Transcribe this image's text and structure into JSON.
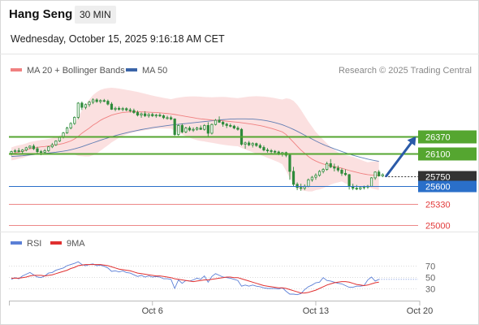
{
  "header": {
    "instrument": "Hang Seng",
    "timeframe": "30 MIN",
    "datetime": "Wednesday, October 15, 2025 9:16:18 AM CET"
  },
  "colors": {
    "ma20": "#f08080",
    "bollinger_fill": "#fadada",
    "ma50": "#3a64a8",
    "candle_up": "#2e8b3a",
    "candle_down": "#2e8b3a",
    "resistance": "#55a630",
    "support": "#2a6fc9",
    "red_support": "#e23a3a",
    "last_price": "#333333",
    "rsi": "#5b7fd6",
    "rsi_ma": "#e03030",
    "arrow": "#2a5aa8"
  },
  "chart_data": [
    {
      "type": "candlestick",
      "legend": [
        {
          "name": "MA 20 + Bollinger Bands",
          "color": "#f08080"
        },
        {
          "name": "MA 50",
          "color": "#3a64a8"
        }
      ],
      "copyright": "Research © 2025 Trading Central",
      "x_ticks": [
        {
          "label": "Oct 6",
          "bar": 38
        },
        {
          "label": "Oct 13",
          "bar": 82
        },
        {
          "label": "Oct 20",
          "bar": 110
        }
      ],
      "ylim": [
        24900,
        27600
      ],
      "candles": [
        [
          26110,
          26150,
          26075,
          26136
        ],
        [
          26136,
          26174,
          26118,
          26150
        ],
        [
          26150,
          26190,
          26120,
          26138
        ],
        [
          26138,
          26174,
          26110,
          26160
        ],
        [
          26160,
          26210,
          26140,
          26195
        ],
        [
          26195,
          26232,
          26178,
          26220
        ],
        [
          26220,
          26250,
          26160,
          26180
        ],
        [
          26180,
          26210,
          26110,
          26135
        ],
        [
          26135,
          26160,
          26080,
          26125
        ],
        [
          26125,
          26175,
          26100,
          26150
        ],
        [
          26150,
          26220,
          26132,
          26210
        ],
        [
          26210,
          26270,
          26190,
          26240
        ],
        [
          26240,
          26310,
          26224,
          26300
        ],
        [
          26300,
          26370,
          26285,
          26355
        ],
        [
          26355,
          26440,
          26340,
          26425
        ],
        [
          26425,
          26520,
          26410,
          26500
        ],
        [
          26500,
          26590,
          26480,
          26570
        ],
        [
          26570,
          26680,
          26550,
          26665
        ],
        [
          26665,
          26900,
          26640,
          26885
        ],
        [
          26885,
          26910,
          26780,
          26820
        ],
        [
          26820,
          26880,
          26790,
          26862
        ],
        [
          26862,
          26920,
          26830,
          26900
        ],
        [
          26900,
          26960,
          26870,
          26935
        ],
        [
          26935,
          26960,
          26890,
          26910
        ],
        [
          26910,
          26945,
          26880,
          26925
        ],
        [
          26925,
          26950,
          26900,
          26915
        ],
        [
          26915,
          26940,
          26850,
          26870
        ],
        [
          26870,
          26900,
          26780,
          26790
        ],
        [
          26790,
          26830,
          26760,
          26805
        ],
        [
          26805,
          26835,
          26770,
          26790
        ],
        [
          26790,
          26825,
          26760,
          26800
        ],
        [
          26800,
          26820,
          26760,
          26780
        ],
        [
          26780,
          26810,
          26740,
          26770
        ],
        [
          26770,
          26800,
          26720,
          26740
        ],
        [
          26740,
          26770,
          26680,
          26700
        ],
        [
          26700,
          26740,
          26660,
          26720
        ],
        [
          26720,
          26760,
          26670,
          26690
        ],
        [
          26690,
          26730,
          26660,
          26710
        ],
        [
          26710,
          26735,
          26670,
          26690
        ],
        [
          26690,
          26720,
          26660,
          26700
        ],
        [
          26700,
          26730,
          26670,
          26690
        ],
        [
          26690,
          26710,
          26640,
          26660
        ],
        [
          26660,
          26690,
          26630,
          26660
        ],
        [
          26660,
          26690,
          26620,
          26640
        ],
        [
          26640,
          26650,
          26380,
          26400
        ],
        [
          26400,
          26560,
          26380,
          26540
        ],
        [
          26540,
          26570,
          26420,
          26440
        ],
        [
          26440,
          26520,
          26420,
          26500
        ],
        [
          26500,
          26530,
          26450,
          26470
        ],
        [
          26470,
          26510,
          26440,
          26480
        ],
        [
          26480,
          26520,
          26460,
          26500
        ],
        [
          26500,
          26540,
          26470,
          26480
        ],
        [
          26480,
          26560,
          26460,
          26540
        ],
        [
          26540,
          26590,
          26350,
          26420
        ],
        [
          26420,
          26570,
          26400,
          26555
        ],
        [
          26555,
          26640,
          26540,
          26620
        ],
        [
          26620,
          26680,
          26580,
          26590
        ],
        [
          26590,
          26610,
          26520,
          26560
        ],
        [
          26560,
          26580,
          26500,
          26540
        ],
        [
          26540,
          26570,
          26510,
          26530
        ],
        [
          26530,
          26550,
          26480,
          26500
        ],
        [
          26500,
          26530,
          26460,
          26480
        ],
        [
          26480,
          26500,
          26230,
          26250
        ],
        [
          26250,
          26290,
          26180,
          26270
        ],
        [
          26270,
          26300,
          26220,
          26240
        ],
        [
          26240,
          26280,
          26200,
          26260
        ],
        [
          26260,
          26275,
          26210,
          26230
        ],
        [
          26230,
          26260,
          26180,
          26200
        ],
        [
          26200,
          26230,
          26140,
          26160
        ],
        [
          26160,
          26190,
          26120,
          26150
        ],
        [
          26150,
          26175,
          26110,
          26140
        ],
        [
          26140,
          26160,
          26110,
          26130
        ],
        [
          26130,
          26150,
          26080,
          26100
        ],
        [
          26100,
          26130,
          26060,
          26120
        ],
        [
          26120,
          26135,
          26050,
          26080
        ],
        [
          26080,
          26100,
          25700,
          25830
        ],
        [
          25830,
          25900,
          25600,
          25630
        ],
        [
          25630,
          25660,
          25540,
          25580
        ],
        [
          25580,
          25640,
          25530,
          25570
        ],
        [
          25570,
          25630,
          25540,
          25600
        ],
        [
          25600,
          25720,
          25585,
          25700
        ],
        [
          25700,
          25760,
          25670,
          25740
        ],
        [
          25740,
          25800,
          25700,
          25770
        ],
        [
          25770,
          25850,
          25750,
          25830
        ],
        [
          25830,
          25880,
          25800,
          25860
        ],
        [
          25860,
          25980,
          25840,
          25950
        ],
        [
          25950,
          26020,
          25880,
          25900
        ],
        [
          25900,
          25950,
          25830,
          25880
        ],
        [
          25880,
          25920,
          25820,
          25850
        ],
        [
          25850,
          25880,
          25760,
          25800
        ],
        [
          25800,
          25860,
          25760,
          25780
        ],
        [
          25780,
          25790,
          25550,
          25600
        ],
        [
          25600,
          25640,
          25540,
          25570
        ],
        [
          25570,
          25620,
          25540,
          25560
        ],
        [
          25560,
          25600,
          25540,
          25580
        ],
        [
          25580,
          25610,
          25550,
          25590
        ],
        [
          25590,
          25620,
          25560,
          25600
        ],
        [
          25600,
          25740,
          25590,
          25730
        ],
        [
          25730,
          25830,
          25700,
          25820
        ],
        [
          25820,
          25850,
          25750,
          25760
        ],
        [
          25760,
          25800,
          25740,
          25780
        ]
      ],
      "ma20": [
        26100,
        26115,
        26130,
        26140,
        26160,
        26180,
        26190,
        26200,
        26210,
        26215,
        26222,
        26230,
        26240,
        26250,
        26262,
        26280,
        26300,
        26330,
        26370,
        26420,
        26460,
        26500,
        26545,
        26580,
        26620,
        26650,
        26675,
        26700,
        26715,
        26730,
        26740,
        26745,
        26750,
        26752,
        26752,
        26750,
        26748,
        26745,
        26742,
        26740,
        26736,
        26730,
        26724,
        26718,
        26710,
        26700,
        26690,
        26680,
        26670,
        26660,
        26650,
        26642,
        26636,
        26630,
        26624,
        26620,
        26616,
        26612,
        26606,
        26600,
        26595,
        26590,
        26582,
        26574,
        26566,
        26558,
        26548,
        26538,
        26525,
        26510,
        26495,
        26478,
        26460,
        26440,
        26400,
        26340,
        26280,
        26220,
        26160,
        26110,
        26060,
        26020,
        25990,
        25965,
        25945,
        25930,
        25918,
        25905,
        25892,
        25880,
        25862,
        25845,
        25830,
        25816,
        25802,
        25790,
        25780,
        25774,
        25770,
        25765
      ],
      "bb_upper": [
        26200,
        26220,
        26235,
        26245,
        26262,
        26284,
        26296,
        26306,
        26316,
        26322,
        26332,
        26346,
        26362,
        26384,
        26412,
        26452,
        26500,
        26570,
        26670,
        26776,
        26860,
        26940,
        27010,
        27055,
        27090,
        27108,
        27118,
        27122,
        27118,
        27110,
        27100,
        27090,
        27080,
        27070,
        27058,
        27044,
        27030,
        27016,
        27002,
        26990,
        26978,
        26966,
        26956,
        26946,
        26960,
        26970,
        26978,
        26984,
        26988,
        26990,
        26988,
        26984,
        26980,
        26978,
        26976,
        26978,
        26980,
        26982,
        26978,
        26972,
        26968,
        26962,
        26970,
        26978,
        26986,
        26990,
        26992,
        26990,
        26986,
        26980,
        26972,
        26962,
        26950,
        26940,
        26960,
        26950,
        26920,
        26860,
        26780,
        26690,
        26600,
        26520,
        26440,
        26380,
        26320,
        26262,
        26210,
        26165,
        26125,
        26085,
        26080,
        26070,
        26055,
        26035,
        26012,
        25990,
        25970,
        25980,
        25985,
        25988
      ],
      "bb_lower": [
        26000,
        26010,
        26025,
        26035,
        26058,
        26076,
        26084,
        26094,
        26104,
        26108,
        26112,
        26114,
        26118,
        26116,
        26112,
        26108,
        26100,
        26090,
        26070,
        26064,
        26060,
        26060,
        26080,
        26105,
        26150,
        26192,
        26232,
        26278,
        26312,
        26350,
        26380,
        26400,
        26420,
        26434,
        26446,
        26456,
        26466,
        26474,
        26482,
        26490,
        26494,
        26494,
        26492,
        26490,
        26460,
        26430,
        26402,
        26376,
        26352,
        26330,
        26312,
        26300,
        26292,
        26282,
        26272,
        26262,
        26252,
        26242,
        26234,
        26228,
        26222,
        26218,
        26194,
        26170,
        26146,
        26126,
        26104,
        26086,
        26064,
        26040,
        26018,
        25994,
        25970,
        25940,
        25840,
        25730,
        25640,
        25580,
        25540,
        25530,
        25520,
        25520,
        25540,
        25550,
        25570,
        25598,
        25626,
        25645,
        25659,
        25675,
        25644,
        25620,
        25605,
        25597,
        25592,
        25590,
        25590,
        25568,
        25555,
        25542
      ],
      "ma50": [
        26060,
        26064,
        26068,
        26072,
        26078,
        26084,
        26090,
        26096,
        26102,
        26108,
        26114,
        26120,
        26126,
        26134,
        26142,
        26152,
        26164,
        26178,
        26194,
        26212,
        26232,
        26252,
        26272,
        26292,
        26312,
        26330,
        26348,
        26366,
        26382,
        26398,
        26412,
        26426,
        26440,
        26452,
        26464,
        26476,
        26486,
        26496,
        26506,
        26514,
        26522,
        26530,
        26538,
        26546,
        26552,
        26558,
        26564,
        26570,
        26576,
        26582,
        26588,
        26594,
        26600,
        26606,
        26612,
        26618,
        26624,
        26630,
        26634,
        26638,
        26640,
        26642,
        26642,
        26642,
        26640,
        26638,
        26634,
        26628,
        26620,
        26610,
        26598,
        26584,
        26568,
        26550,
        26528,
        26504,
        26478,
        26450,
        26420,
        26390,
        26360,
        26330,
        26300,
        26272,
        26246,
        26222,
        26200,
        26178,
        26158,
        26138,
        26118,
        26098,
        26080,
        26064,
        26048,
        26034,
        26020,
        26008,
        25996,
        25985
      ],
      "levels": [
        {
          "value": 26370,
          "label": "26370",
          "color": "#55a630",
          "kind": "resistance"
        },
        {
          "value": 26100,
          "label": "26100",
          "color": "#55a630",
          "kind": "resistance"
        },
        {
          "value": 25750,
          "label": "25750",
          "color": "#333333",
          "kind": "last"
        },
        {
          "value": 25600,
          "label": "25600",
          "color": "#2a6fc9",
          "kind": "pivot"
        },
        {
          "value": 25330,
          "label": "25330",
          "color": "#e23a3a",
          "kind": "support"
        },
        {
          "value": 25000,
          "label": "25000",
          "color": "#e23a3a",
          "kind": "support"
        }
      ],
      "arrow": {
        "from_bar": 101,
        "from_value": 25760,
        "to_bar": 109,
        "to_value": 26370
      }
    },
    {
      "type": "line",
      "legend": [
        {
          "name": "RSI",
          "color": "#5b7fd6"
        },
        {
          "name": "9MA",
          "color": "#e03030"
        }
      ],
      "ylim": [
        10,
        90
      ],
      "y_ticks": [
        70,
        50,
        30
      ],
      "rsi": [
        46,
        49,
        47,
        52,
        55,
        58,
        54,
        50,
        49,
        52,
        57,
        58,
        62,
        64,
        66,
        70,
        72,
        74,
        77,
        72,
        70,
        72,
        73,
        70,
        71,
        69,
        66,
        60,
        61,
        59,
        61,
        58,
        57,
        54,
        51,
        53,
        50,
        52,
        50,
        51,
        50,
        47,
        47,
        46,
        30,
        45,
        39,
        44,
        43,
        45,
        48,
        46,
        52,
        41,
        51,
        56,
        53,
        50,
        49,
        48,
        46,
        44,
        34,
        36,
        34,
        36,
        34,
        33,
        31,
        30,
        30,
        30,
        29,
        31,
        25,
        20,
        20,
        19,
        21,
        28,
        33,
        36,
        40,
        41,
        49,
        44,
        43,
        41,
        39,
        38,
        35,
        32,
        32,
        34,
        34,
        35,
        45,
        50,
        43,
        46
      ],
      "rsi_ma": [
        48,
        48,
        48,
        49,
        50,
        52,
        53,
        53,
        53,
        52,
        53,
        54,
        56,
        58,
        60,
        62,
        65,
        67,
        70,
        71,
        72,
        72,
        72,
        72,
        72,
        71,
        70,
        68,
        66,
        64,
        63,
        62,
        61,
        59,
        57,
        56,
        55,
        54,
        53,
        52,
        52,
        51,
        50,
        49,
        47,
        46,
        45,
        44,
        43,
        42,
        43,
        44,
        45,
        45,
        46,
        47,
        48,
        49,
        50,
        50,
        49,
        49,
        47,
        45,
        43,
        41,
        39,
        37,
        35,
        34,
        33,
        32,
        31,
        31,
        30,
        28,
        26,
        24,
        22,
        22,
        23,
        25,
        27,
        30,
        33,
        36,
        38,
        40,
        41,
        42,
        42,
        41,
        39,
        37,
        36,
        35,
        36,
        38,
        40,
        41
      ]
    }
  ]
}
